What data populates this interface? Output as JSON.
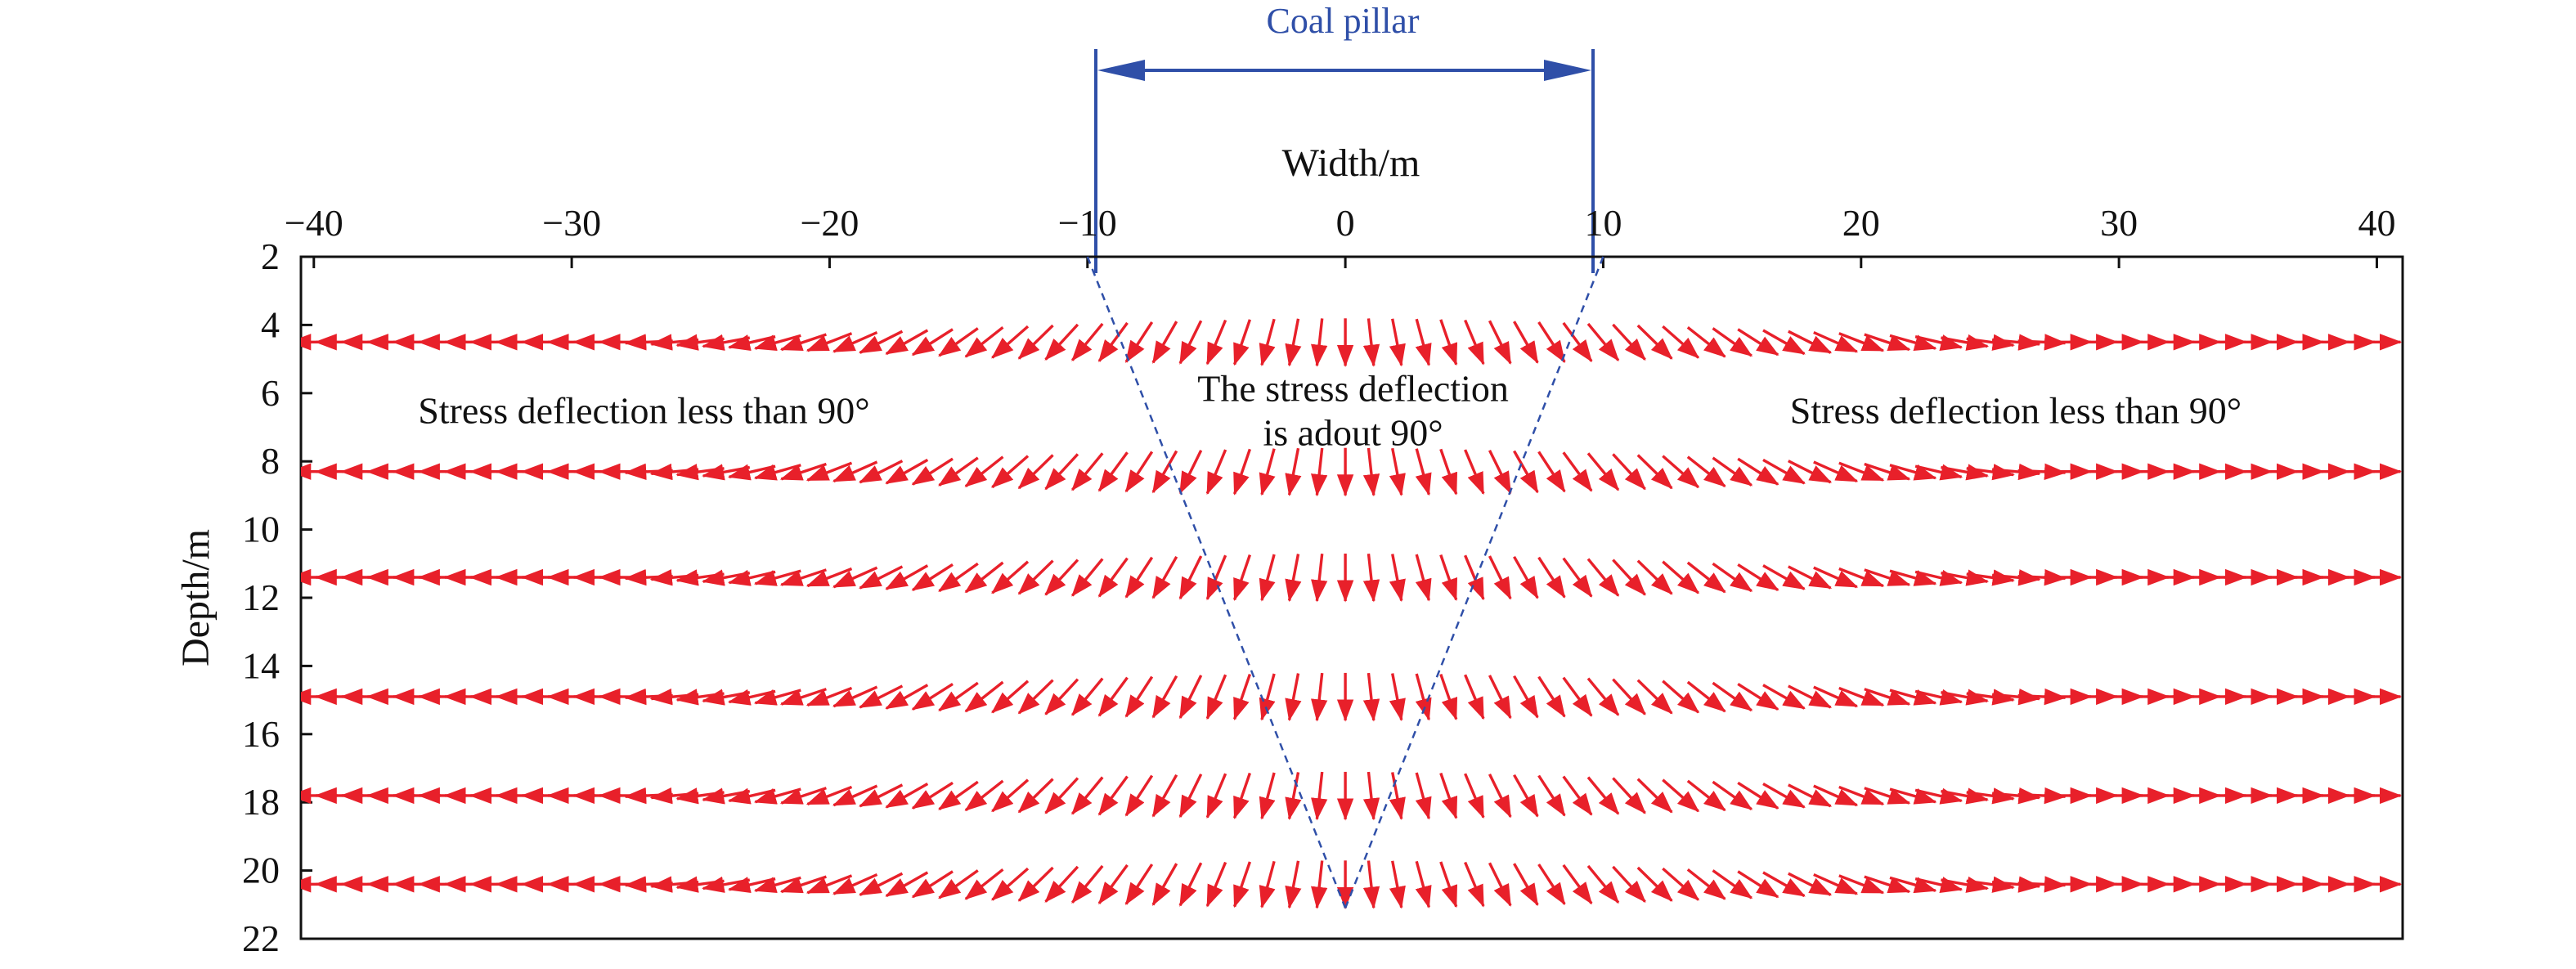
{
  "chart_data": {
    "type": "vector-field",
    "xlabel": "Width/m",
    "ylabel": "Depth/m",
    "xlim": [
      -40.5,
      41
    ],
    "ylim": [
      2,
      22
    ],
    "x_axis_position": "top",
    "y_inverted": true,
    "xticks": [
      -40,
      -30,
      -20,
      -10,
      0,
      10,
      20,
      30,
      40
    ],
    "xtick_labels": [
      "−40",
      "−30",
      "−20",
      "−10",
      "0",
      "10",
      "20",
      "30",
      "40"
    ],
    "yticks": [
      2,
      4,
      6,
      8,
      10,
      12,
      14,
      16,
      18,
      20,
      22
    ],
    "ytick_labels": [
      "2",
      "4",
      "6",
      "8",
      "10",
      "12",
      "14",
      "16",
      "18",
      "20",
      "22"
    ],
    "arrow_rows_depth_m": [
      4.5,
      8.3,
      11.4,
      14.9,
      17.8,
      20.4
    ],
    "arrow_x_start": -40,
    "arrow_x_end": 40,
    "arrow_x_step": 1,
    "arrow_color": "#e8202a",
    "pillar": {
      "label": "Coal pillar",
      "x_from": -10,
      "x_to": 10,
      "color": "#2f4fa8"
    },
    "wedge": {
      "top_left": [
        -10,
        2
      ],
      "top_right": [
        10,
        2
      ],
      "apex": [
        0,
        21.1
      ],
      "color": "#2f4fa8",
      "style": "dashed"
    },
    "annotations": [
      {
        "name": "left-region-label",
        "lines": [
          "Stress deflection less than 90°"
        ],
        "x": -27.2,
        "y": 6.5
      },
      {
        "name": "center-region-label",
        "lines": [
          "The stress deflection",
          "is adout 90°"
        ],
        "x": 0.3,
        "y": 6.5
      },
      {
        "name": "right-region-label",
        "lines": [
          "Stress deflection less than 90°"
        ],
        "x": 26.0,
        "y": 6.5
      }
    ]
  }
}
